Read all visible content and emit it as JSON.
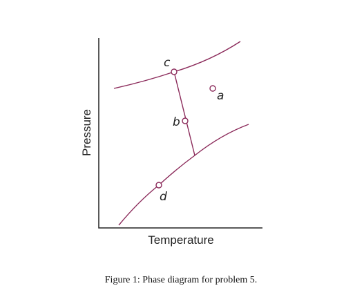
{
  "diagram": {
    "axes": {
      "x_label": "Temperature",
      "y_label": "Pressure"
    },
    "points": [
      {
        "label": "a"
      },
      {
        "label": "b"
      },
      {
        "label": "c"
      },
      {
        "label": "d"
      }
    ],
    "caption": "Figure 1: Phase diagram for problem 5."
  }
}
